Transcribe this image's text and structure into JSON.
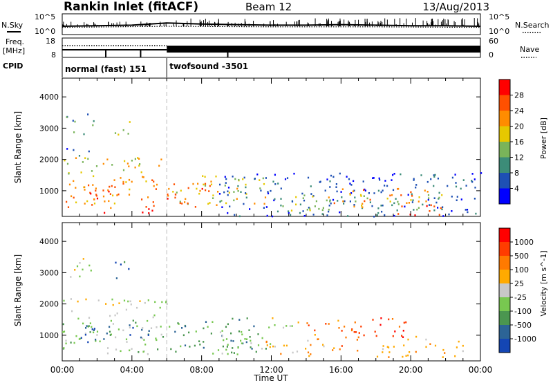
{
  "header": {
    "station": "Rankin Inlet (fitACF)",
    "beam": "Beam 12",
    "date": "13/Aug/2013"
  },
  "panel_labels": {
    "nsky": "N.Sky",
    "nsearch": "N.Search",
    "freq_top": "Freq.",
    "freq_unit": "[MHz]",
    "nave": "Nave",
    "cpid": "CPID"
  },
  "cpid_segments": [
    {
      "label": "normal (fast) 151",
      "start_hour": 0,
      "end_hour": 6
    },
    {
      "label": "twofsound -3501",
      "start_hour": 6,
      "end_hour": 24
    }
  ],
  "colors": {
    "power_scale": [
      "#0000ff",
      "#1e50b4",
      "#3c8c78",
      "#7ab45a",
      "#e6c800",
      "#ff8c00",
      "#ff5000",
      "#ff0000"
    ],
    "velocity_scale": [
      "#1446b4",
      "#2c6496",
      "#4b9650",
      "#78c850",
      "#c8c8c8",
      "#ffaa00",
      "#ff7a00",
      "#ff3c00",
      "#ff0000"
    ]
  },
  "chart_data": [
    {
      "type": "line",
      "name": "sky-noise-panel",
      "xlim": [
        0,
        24
      ],
      "left_ticks": [
        "10^5",
        "10^0"
      ],
      "right_ticks": [
        "10^5",
        "10^0"
      ],
      "series": [
        {
          "name": "N.Sky",
          "x": [
            0,
            2,
            4,
            6,
            8,
            10,
            12,
            14,
            16,
            18,
            20,
            22,
            24
          ],
          "y": [
            1.0,
            1.1,
            1.2,
            1.6,
            1.4,
            1.3,
            1.2,
            1.2,
            1.3,
            1.2,
            1.1,
            1.1,
            1.0
          ]
        },
        {
          "name": "N.Search",
          "x": [
            0,
            6,
            12,
            18,
            24
          ],
          "y": [
            0.8,
            1.0,
            0.9,
            0.9,
            0.8
          ]
        }
      ]
    },
    {
      "type": "line",
      "name": "frequency-nave-panel",
      "left_ticks": [
        "18",
        "8"
      ],
      "right_ticks": [
        "60",
        "0"
      ],
      "ylim_freq": [
        8,
        18
      ],
      "ylim_nave": [
        0,
        60
      ]
    },
    {
      "type": "heatmap",
      "name": "power",
      "xlabel": "Time UT",
      "ylabel": "Slant Range [km]",
      "colorbar_label": "Power [dB]",
      "colorbar_ticks": [
        "28",
        "24",
        "20",
        "16",
        "12",
        "8",
        "4"
      ],
      "xlim": [
        0,
        24
      ],
      "ylim": [
        180,
        4600
      ],
      "yticks": [
        "1000",
        "2000",
        "3000",
        "4000"
      ],
      "xticks": [
        "00:00",
        "04:00",
        "08:00",
        "12:00",
        "16:00",
        "20:00",
        "00:00"
      ],
      "blobs": [
        {
          "t0": 0.0,
          "t1": 6.0,
          "r0": 1550,
          "r1": 2100,
          "level": 4
        },
        {
          "t0": 0.0,
          "t1": 6.0,
          "r0": 500,
          "r1": 1500,
          "level": 5
        },
        {
          "t0": 1.5,
          "t1": 3.5,
          "r0": 300,
          "r1": 1200,
          "level": 6
        },
        {
          "t0": 4.5,
          "t1": 5.5,
          "r0": 180,
          "r1": 600,
          "level": 7
        },
        {
          "t0": 0.2,
          "t1": 1.8,
          "r0": 2800,
          "r1": 3500,
          "level": 2
        },
        {
          "t0": 3.0,
          "t1": 4.0,
          "r0": 2800,
          "r1": 3400,
          "level": 3
        },
        {
          "t0": 0.0,
          "t1": 1.5,
          "r0": 2100,
          "r1": 2400,
          "level": 1
        },
        {
          "t0": 6.0,
          "t1": 12.0,
          "r0": 600,
          "r1": 1500,
          "level": 4
        },
        {
          "t0": 6.0,
          "t1": 9.0,
          "r0": 500,
          "r1": 1300,
          "level": 6
        },
        {
          "t0": 9.0,
          "t1": 24.0,
          "r0": 200,
          "r1": 1600,
          "level": 1
        },
        {
          "t0": 12.0,
          "t1": 22.0,
          "r0": 300,
          "r1": 900,
          "level": 3
        },
        {
          "t0": 15.0,
          "t1": 21.0,
          "r0": 500,
          "r1": 1100,
          "level": 5
        },
        {
          "t0": 19.0,
          "t1": 22.0,
          "r0": 200,
          "r1": 600,
          "level": 6
        }
      ]
    },
    {
      "type": "heatmap",
      "name": "velocity",
      "xlabel": "Time UT",
      "ylabel": "Slant Range [km]",
      "colorbar_label": "Velocity [m s^-1]",
      "colorbar_ticks": [
        "1000",
        "500",
        "100",
        "25",
        "-25",
        "-100",
        "-500",
        "-1000"
      ],
      "xlim": [
        0,
        24
      ],
      "ylim": [
        180,
        4600
      ],
      "yticks": [
        "1000",
        "2000",
        "3000",
        "4000"
      ],
      "xticks": [
        "00:00",
        "04:00",
        "08:00",
        "12:00",
        "16:00",
        "20:00",
        "00:00"
      ],
      "blobs": [
        {
          "t0": 0.0,
          "t1": 6.0,
          "r0": 1600,
          "r1": 2200,
          "level": 4
        },
        {
          "t0": 0.0,
          "t1": 6.0,
          "r0": 400,
          "r1": 1600,
          "level": 3
        },
        {
          "t0": 1.0,
          "t1": 5.0,
          "r0": 700,
          "r1": 1400,
          "level": 1
        },
        {
          "t0": 0.2,
          "t1": 1.8,
          "r0": 2800,
          "r1": 3500,
          "level": 4
        },
        {
          "t0": 3.0,
          "t1": 4.0,
          "r0": 2800,
          "r1": 3400,
          "level": 1
        },
        {
          "t0": 6.0,
          "t1": 11.0,
          "r0": 500,
          "r1": 1600,
          "level": 2
        },
        {
          "t0": 8.0,
          "t1": 12.0,
          "r0": 400,
          "r1": 1300,
          "level": 3
        },
        {
          "t0": 11.0,
          "t1": 15.0,
          "r0": 300,
          "r1": 900,
          "level": 5
        },
        {
          "t0": 14.0,
          "t1": 17.0,
          "r0": 500,
          "r1": 1500,
          "level": 6
        },
        {
          "t0": 17.0,
          "t1": 20.0,
          "r0": 900,
          "r1": 1600,
          "level": 7
        },
        {
          "t0": 18.0,
          "t1": 23.0,
          "r0": 300,
          "r1": 1000,
          "level": 5
        },
        {
          "t0": 12.0,
          "t1": 14.0,
          "r0": 1200,
          "r1": 1600,
          "level": 4
        }
      ]
    }
  ]
}
